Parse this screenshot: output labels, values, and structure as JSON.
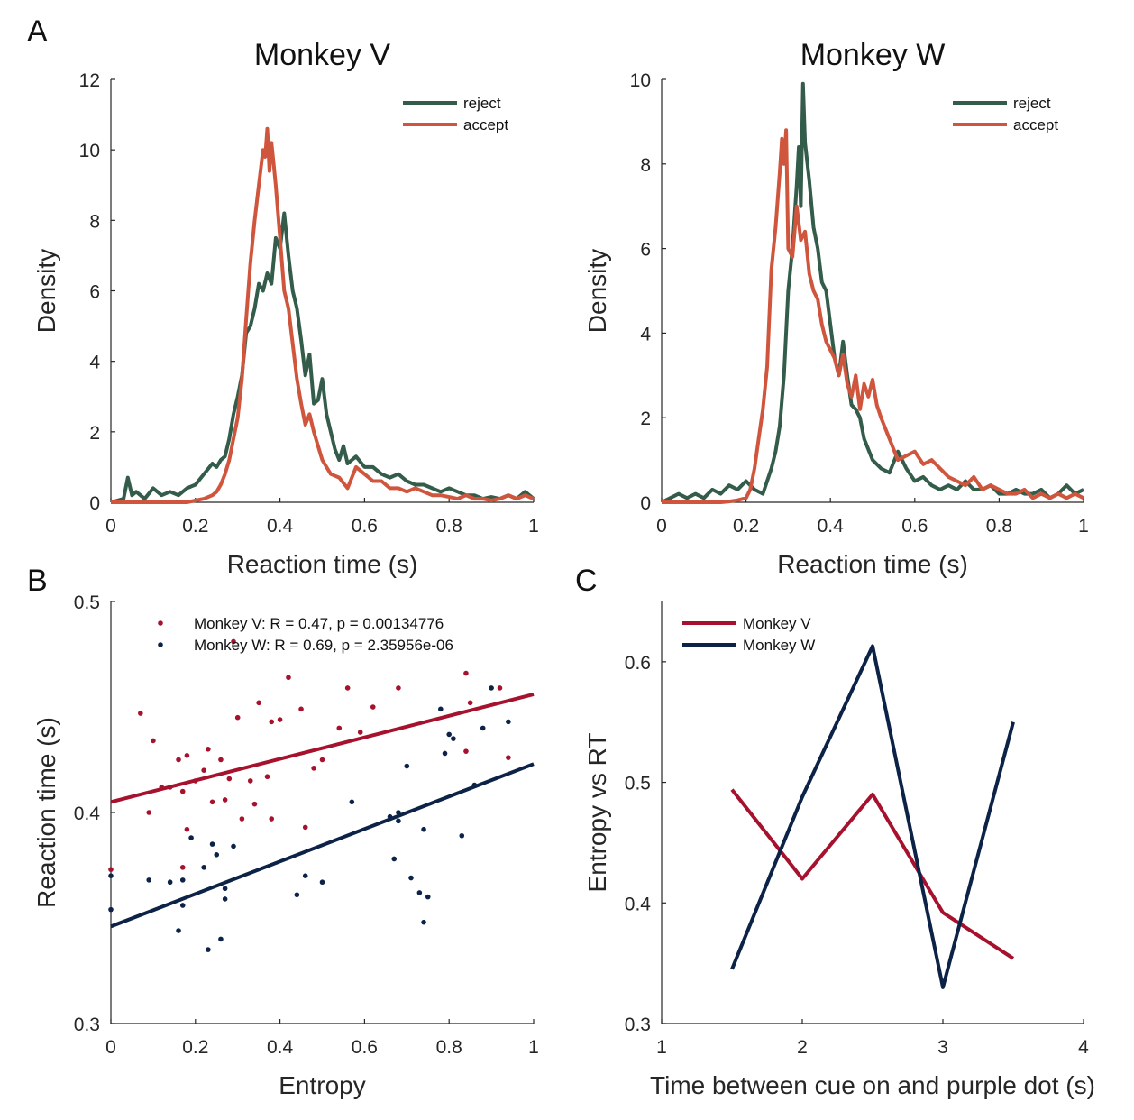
{
  "panels": {
    "A": "A",
    "B": "B",
    "C": "C"
  },
  "chart_data": [
    {
      "id": "monkeyV_density",
      "type": "line",
      "title": "Monkey V",
      "xlabel": "Reaction time (s)",
      "ylabel": "Density",
      "xlim": [
        0,
        1
      ],
      "ylim": [
        0,
        12
      ],
      "xticks": [
        0,
        0.2,
        0.4,
        0.6,
        0.8,
        1
      ],
      "xticklabels": [
        "0",
        "0.2",
        "0.4",
        "0.6",
        "0.8",
        "1"
      ],
      "yticks": [
        0,
        2,
        4,
        6,
        8,
        10,
        12
      ],
      "yticklabels": [
        "0",
        "2",
        "4",
        "6",
        "8",
        "10",
        "12"
      ],
      "legend_position": "top-right",
      "series": [
        {
          "name": "reject",
          "color": "#335c4a",
          "x": [
            0,
            0.03,
            0.04,
            0.05,
            0.06,
            0.08,
            0.1,
            0.12,
            0.14,
            0.16,
            0.18,
            0.2,
            0.22,
            0.24,
            0.25,
            0.26,
            0.27,
            0.28,
            0.29,
            0.3,
            0.31,
            0.32,
            0.33,
            0.34,
            0.35,
            0.36,
            0.37,
            0.38,
            0.39,
            0.4,
            0.41,
            0.42,
            0.43,
            0.44,
            0.45,
            0.46,
            0.47,
            0.48,
            0.49,
            0.5,
            0.51,
            0.52,
            0.53,
            0.54,
            0.55,
            0.56,
            0.58,
            0.6,
            0.62,
            0.64,
            0.66,
            0.68,
            0.7,
            0.72,
            0.74,
            0.76,
            0.78,
            0.8,
            0.82,
            0.84,
            0.86,
            0.88,
            0.9,
            0.92,
            0.94,
            0.96,
            0.98,
            1.0
          ],
          "y": [
            0,
            0.1,
            0.7,
            0.2,
            0.3,
            0.1,
            0.4,
            0.2,
            0.3,
            0.2,
            0.4,
            0.5,
            0.8,
            1.1,
            1.0,
            1.2,
            1.3,
            1.8,
            2.5,
            3.0,
            3.6,
            4.8,
            5.0,
            5.5,
            6.2,
            6.0,
            6.5,
            6.2,
            7.5,
            7.2,
            8.2,
            7.0,
            6.0,
            5.5,
            4.6,
            3.6,
            4.2,
            2.8,
            2.9,
            3.5,
            2.5,
            2.0,
            1.5,
            1.2,
            1.6,
            1.1,
            1.3,
            1.0,
            1.0,
            0.8,
            0.7,
            0.8,
            0.6,
            0.5,
            0.5,
            0.4,
            0.3,
            0.4,
            0.3,
            0.2,
            0.2,
            0.1,
            0.15,
            0.1,
            0.2,
            0.1,
            0.3,
            0.1
          ]
        },
        {
          "name": "accept",
          "color": "#d0553d",
          "x": [
            0,
            0.18,
            0.2,
            0.22,
            0.24,
            0.25,
            0.26,
            0.27,
            0.28,
            0.29,
            0.3,
            0.31,
            0.32,
            0.33,
            0.34,
            0.35,
            0.36,
            0.365,
            0.37,
            0.375,
            0.38,
            0.385,
            0.39,
            0.4,
            0.41,
            0.42,
            0.43,
            0.44,
            0.45,
            0.46,
            0.47,
            0.48,
            0.49,
            0.5,
            0.51,
            0.52,
            0.54,
            0.56,
            0.58,
            0.6,
            0.62,
            0.64,
            0.66,
            0.68,
            0.7,
            0.72,
            0.74,
            0.76,
            0.78,
            0.8,
            0.82,
            0.84,
            0.86,
            0.88,
            0.9,
            0.92,
            0.94,
            0.96,
            0.98,
            1.0
          ],
          "y": [
            0,
            0,
            0.05,
            0.1,
            0.2,
            0.3,
            0.5,
            0.8,
            1.2,
            1.8,
            2.4,
            3.5,
            5.2,
            6.8,
            8.0,
            9.0,
            10.0,
            9.8,
            10.6,
            9.4,
            10.2,
            9.6,
            9.0,
            7.5,
            6.0,
            5.5,
            4.5,
            3.5,
            2.8,
            2.2,
            2.5,
            2.0,
            1.6,
            1.2,
            1.0,
            0.8,
            0.7,
            0.4,
            1.0,
            0.8,
            0.6,
            0.6,
            0.4,
            0.4,
            0.3,
            0.4,
            0.3,
            0.2,
            0.2,
            0.15,
            0.1,
            0.2,
            0.1,
            0.1,
            0.05,
            0.1,
            0.2,
            0.1,
            0.2,
            0.1
          ]
        }
      ]
    },
    {
      "id": "monkeyW_density",
      "type": "line",
      "title": "Monkey W",
      "xlabel": "Reaction time (s)",
      "ylabel": "Density",
      "xlim": [
        0,
        1
      ],
      "ylim": [
        0,
        10
      ],
      "xticks": [
        0,
        0.2,
        0.4,
        0.6,
        0.8,
        1
      ],
      "xticklabels": [
        "0",
        "0.2",
        "0.4",
        "0.6",
        "0.8",
        "1"
      ],
      "yticks": [
        0,
        2,
        4,
        6,
        8,
        10
      ],
      "yticklabels": [
        "0",
        "2",
        "4",
        "6",
        "8",
        "10"
      ],
      "legend_position": "top-right",
      "series": [
        {
          "name": "reject",
          "color": "#335c4a",
          "x": [
            0,
            0.02,
            0.04,
            0.06,
            0.08,
            0.1,
            0.12,
            0.14,
            0.16,
            0.18,
            0.2,
            0.22,
            0.24,
            0.25,
            0.26,
            0.27,
            0.28,
            0.29,
            0.3,
            0.31,
            0.32,
            0.325,
            0.33,
            0.335,
            0.34,
            0.35,
            0.36,
            0.37,
            0.38,
            0.39,
            0.4,
            0.41,
            0.42,
            0.43,
            0.44,
            0.45,
            0.46,
            0.47,
            0.48,
            0.5,
            0.52,
            0.54,
            0.56,
            0.58,
            0.6,
            0.62,
            0.64,
            0.66,
            0.68,
            0.7,
            0.72,
            0.74,
            0.76,
            0.78,
            0.8,
            0.82,
            0.84,
            0.86,
            0.88,
            0.9,
            0.92,
            0.94,
            0.96,
            0.98,
            1.0
          ],
          "y": [
            0,
            0.1,
            0.2,
            0.1,
            0.2,
            0.1,
            0.3,
            0.2,
            0.4,
            0.3,
            0.5,
            0.3,
            0.2,
            0.5,
            0.8,
            1.2,
            1.8,
            3.0,
            5.0,
            6.0,
            7.5,
            8.4,
            7.0,
            9.9,
            8.5,
            7.6,
            6.5,
            6.0,
            5.2,
            5.0,
            4.2,
            3.4,
            3.0,
            3.8,
            3.0,
            2.3,
            2.2,
            2.0,
            1.5,
            1.0,
            0.8,
            0.7,
            1.2,
            0.8,
            0.5,
            0.6,
            0.4,
            0.3,
            0.4,
            0.3,
            0.5,
            0.3,
            0.3,
            0.4,
            0.2,
            0.2,
            0.3,
            0.2,
            0.2,
            0.3,
            0.1,
            0.2,
            0.4,
            0.2,
            0.3
          ]
        },
        {
          "name": "accept",
          "color": "#d0553d",
          "x": [
            0,
            0.14,
            0.16,
            0.18,
            0.2,
            0.21,
            0.22,
            0.23,
            0.24,
            0.25,
            0.26,
            0.27,
            0.28,
            0.285,
            0.29,
            0.295,
            0.3,
            0.31,
            0.32,
            0.33,
            0.34,
            0.35,
            0.36,
            0.37,
            0.38,
            0.39,
            0.4,
            0.41,
            0.42,
            0.43,
            0.44,
            0.45,
            0.46,
            0.47,
            0.48,
            0.49,
            0.5,
            0.51,
            0.52,
            0.54,
            0.56,
            0.58,
            0.6,
            0.62,
            0.64,
            0.66,
            0.68,
            0.7,
            0.72,
            0.74,
            0.76,
            0.78,
            0.8,
            0.82,
            0.84,
            0.86,
            0.88,
            0.9,
            0.92,
            0.94,
            0.96,
            0.98,
            1.0
          ],
          "y": [
            0,
            0,
            0.02,
            0.05,
            0.1,
            0.3,
            0.8,
            1.5,
            2.2,
            3.2,
            5.5,
            6.5,
            7.8,
            8.6,
            8.0,
            8.8,
            6.0,
            5.8,
            7.0,
            6.2,
            6.4,
            5.4,
            5.0,
            4.8,
            4.2,
            3.8,
            3.6,
            3.4,
            3.0,
            3.5,
            2.8,
            2.5,
            3.0,
            2.2,
            2.8,
            2.5,
            2.9,
            2.3,
            2.0,
            1.5,
            1.0,
            1.1,
            1.2,
            0.9,
            1.0,
            0.8,
            0.6,
            0.5,
            0.4,
            0.6,
            0.3,
            0.4,
            0.3,
            0.2,
            0.2,
            0.3,
            0.1,
            0.2,
            0.1,
            0.2,
            0.1,
            0.2,
            0.1
          ]
        }
      ]
    },
    {
      "id": "entropy_rt_scatter",
      "type": "scatter",
      "title": "",
      "xlabel": "Entropy",
      "ylabel": "Reaction time (s)",
      "xlim": [
        0,
        1
      ],
      "ylim": [
        0.3,
        0.5
      ],
      "xticks": [
        0,
        0.2,
        0.4,
        0.6,
        0.8,
        1
      ],
      "xticklabels": [
        "0",
        "0.2",
        "0.4",
        "0.6",
        "0.8",
        "1"
      ],
      "yticks": [
        0.3,
        0.4,
        0.5
      ],
      "yticklabels": [
        "0.3",
        "0.4",
        "0.5"
      ],
      "legend_position": "top-left",
      "series": [
        {
          "name": "Monkey V: R = 0.47, p = 0.00134776",
          "color": "#a6122d",
          "fit": [
            [
              0,
              0.405
            ],
            [
              1,
              0.456
            ]
          ],
          "points": [
            [
              0,
              0.373
            ],
            [
              0.07,
              0.447
            ],
            [
              0.09,
              0.4
            ],
            [
              0.1,
              0.434
            ],
            [
              0.14,
              0.412
            ],
            [
              0.16,
              0.425
            ],
            [
              0.17,
              0.41
            ],
            [
              0.18,
              0.392
            ],
            [
              0.18,
              0.427
            ],
            [
              0.2,
              0.415
            ],
            [
              0.22,
              0.42
            ],
            [
              0.23,
              0.43
            ],
            [
              0.24,
              0.405
            ],
            [
              0.26,
              0.425
            ],
            [
              0.27,
              0.406
            ],
            [
              0.28,
              0.416
            ],
            [
              0.29,
              0.481
            ],
            [
              0.3,
              0.445
            ],
            [
              0.31,
              0.397
            ],
            [
              0.33,
              0.415
            ],
            [
              0.34,
              0.404
            ],
            [
              0.35,
              0.452
            ],
            [
              0.37,
              0.417
            ],
            [
              0.38,
              0.397
            ],
            [
              0.38,
              0.443
            ],
            [
              0.4,
              0.444
            ],
            [
              0.42,
              0.464
            ],
            [
              0.45,
              0.449
            ],
            [
              0.46,
              0.393
            ],
            [
              0.48,
              0.421
            ],
            [
              0.5,
              0.425
            ],
            [
              0.54,
              0.44
            ],
            [
              0.56,
              0.459
            ],
            [
              0.59,
              0.438
            ],
            [
              0.62,
              0.45
            ],
            [
              0.68,
              0.459
            ],
            [
              0.84,
              0.466
            ],
            [
              0.84,
              0.429
            ],
            [
              0.85,
              0.452
            ],
            [
              0.92,
              0.459
            ],
            [
              0.94,
              0.426
            ],
            [
              0.17,
              0.374
            ],
            [
              0.12,
              0.412
            ]
          ]
        },
        {
          "name": "Monkey W: R = 0.69, p = 2.35956e-06",
          "color": "#0c2347",
          "fit": [
            [
              0,
              0.346
            ],
            [
              1,
              0.423
            ]
          ],
          "points": [
            [
              0,
              0.354
            ],
            [
              0,
              0.37
            ],
            [
              0.09,
              0.368
            ],
            [
              0.14,
              0.367
            ],
            [
              0.16,
              0.344
            ],
            [
              0.17,
              0.356
            ],
            [
              0.17,
              0.368
            ],
            [
              0.19,
              0.388
            ],
            [
              0.22,
              0.374
            ],
            [
              0.23,
              0.335
            ],
            [
              0.24,
              0.385
            ],
            [
              0.25,
              0.38
            ],
            [
              0.26,
              0.34
            ],
            [
              0.27,
              0.364
            ],
            [
              0.27,
              0.359
            ],
            [
              0.29,
              0.384
            ],
            [
              0.44,
              0.361
            ],
            [
              0.46,
              0.37
            ],
            [
              0.5,
              0.367
            ],
            [
              0.57,
              0.405
            ],
            [
              0.66,
              0.398
            ],
            [
              0.67,
              0.378
            ],
            [
              0.68,
              0.396
            ],
            [
              0.68,
              0.4
            ],
            [
              0.7,
              0.422
            ],
            [
              0.71,
              0.369
            ],
            [
              0.73,
              0.362
            ],
            [
              0.74,
              0.348
            ],
            [
              0.74,
              0.392
            ],
            [
              0.75,
              0.36
            ],
            [
              0.78,
              0.449
            ],
            [
              0.79,
              0.428
            ],
            [
              0.8,
              0.437
            ],
            [
              0.81,
              0.435
            ],
            [
              0.83,
              0.389
            ],
            [
              0.86,
              0.413
            ],
            [
              0.88,
              0.44
            ],
            [
              0.9,
              0.459
            ],
            [
              0.94,
              0.443
            ]
          ]
        }
      ]
    },
    {
      "id": "entropy_vs_rt_timing",
      "type": "line",
      "title": "",
      "xlabel": "Time between cue on and purple dot (s)",
      "ylabel": "Entropy vs RT",
      "xlim": [
        1,
        4
      ],
      "ylim": [
        0.3,
        0.65
      ],
      "xticks": [
        1,
        2,
        3,
        4
      ],
      "xticklabels": [
        "1",
        "2",
        "3",
        "4"
      ],
      "yticks": [
        0.3,
        0.4,
        0.5,
        0.6
      ],
      "yticklabels": [
        "0.3",
        "0.4",
        "0.5",
        "0.6"
      ],
      "legend_position": "top-left",
      "series": [
        {
          "name": "Monkey V",
          "color": "#a6122d",
          "x": [
            1.5,
            2,
            2.5,
            3,
            3.5
          ],
          "y": [
            0.494,
            0.42,
            0.49,
            0.392,
            0.354
          ]
        },
        {
          "name": "Monkey W",
          "color": "#0c2347",
          "x": [
            1.5,
            2,
            2.5,
            3,
            3.5
          ],
          "y": [
            0.345,
            0.488,
            0.613,
            0.33,
            0.55
          ]
        }
      ]
    }
  ]
}
